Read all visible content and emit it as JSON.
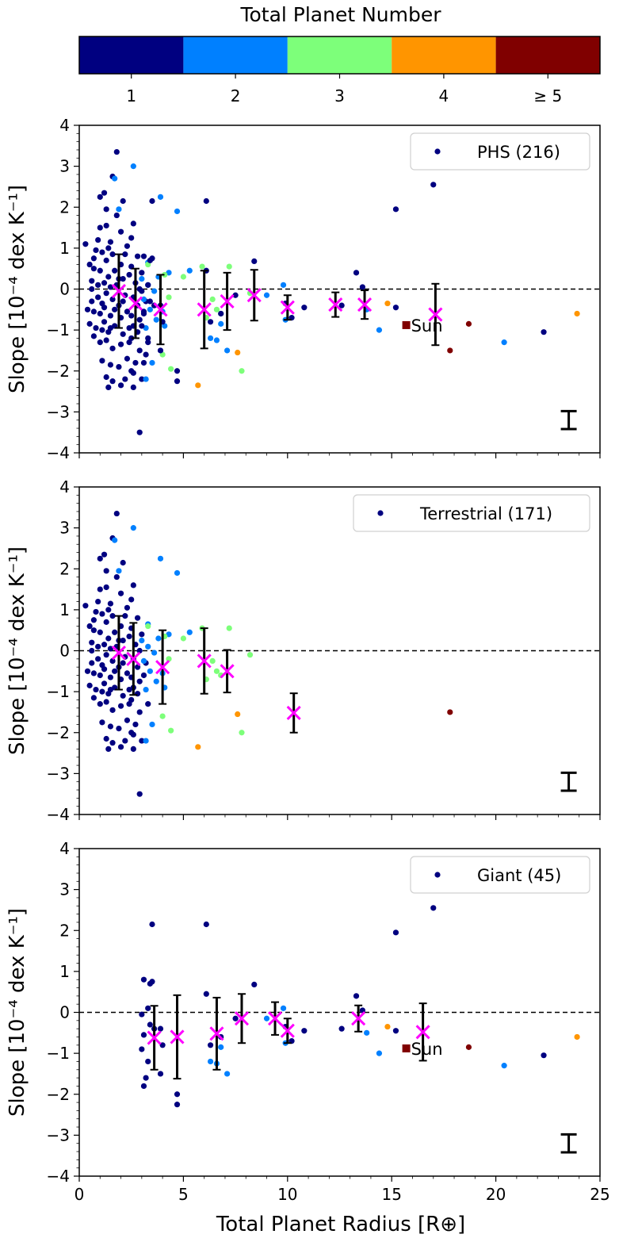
{
  "chart_data": {
    "type": "scatter",
    "colorbar": {
      "title": "Total Planet Number",
      "labels": [
        "1",
        "2",
        "3",
        "4",
        "≥ 5"
      ],
      "colors": [
        "#000080",
        "#0080ff",
        "#7dff7a",
        "#ff9500",
        "#800000"
      ]
    },
    "xlabel": "Total Planet Radius [R⊕]",
    "xlim": [
      0,
      25
    ],
    "xticks": [
      0,
      5,
      10,
      15,
      20,
      25
    ],
    "ylabel": "Slope [10⁻⁴ dex K⁻¹]",
    "ylim": [
      -4,
      4
    ],
    "yticks": [
      -4,
      -3,
      -2,
      -1,
      0,
      1,
      2,
      3,
      4
    ],
    "panels": [
      {
        "legend": "PHS (216)",
        "sun": {
          "x": 15.7,
          "y": -0.88,
          "label": "Sun"
        },
        "typical_error": {
          "x": 23.5,
          "y": -3.2,
          "err": 0.22
        },
        "binned": [
          {
            "x": 1.9,
            "y": -0.05,
            "err": 0.9
          },
          {
            "x": 2.7,
            "y": -0.35,
            "err": 0.85
          },
          {
            "x": 3.9,
            "y": -0.5,
            "err": 0.85
          },
          {
            "x": 6.0,
            "y": -0.5,
            "err": 0.95
          },
          {
            "x": 7.1,
            "y": -0.3,
            "err": 0.7
          },
          {
            "x": 8.4,
            "y": -0.15,
            "err": 0.62
          },
          {
            "x": 10.0,
            "y": -0.45,
            "err": 0.3
          },
          {
            "x": 12.3,
            "y": -0.38,
            "err": 0.3
          },
          {
            "x": 13.7,
            "y": -0.38,
            "err": 0.35
          },
          {
            "x": 17.1,
            "y": -0.62,
            "err": 0.75
          }
        ]
      },
      {
        "legend": "Terrestrial (171)",
        "typical_error": {
          "x": 23.5,
          "y": -3.2,
          "err": 0.22
        },
        "binned": [
          {
            "x": 1.9,
            "y": -0.05,
            "err": 0.9
          },
          {
            "x": 2.6,
            "y": -0.2,
            "err": 0.88
          },
          {
            "x": 4.0,
            "y": -0.4,
            "err": 0.9
          },
          {
            "x": 6.0,
            "y": -0.25,
            "err": 0.8
          },
          {
            "x": 7.1,
            "y": -0.5,
            "err": 0.52
          },
          {
            "x": 10.3,
            "y": -1.52,
            "err": 0.48
          }
        ]
      },
      {
        "legend": "Giant (45)",
        "sun": {
          "x": 15.7,
          "y": -0.88,
          "label": "Sun"
        },
        "typical_error": {
          "x": 23.5,
          "y": -3.2,
          "err": 0.22
        },
        "binned": [
          {
            "x": 3.6,
            "y": -0.62,
            "err": 0.78
          },
          {
            "x": 4.7,
            "y": -0.6,
            "err": 1.02
          },
          {
            "x": 6.6,
            "y": -0.52,
            "err": 0.88
          },
          {
            "x": 7.8,
            "y": -0.15,
            "err": 0.6
          },
          {
            "x": 9.4,
            "y": -0.15,
            "err": 0.4
          },
          {
            "x": 10.0,
            "y": -0.45,
            "err": 0.3
          },
          {
            "x": 13.4,
            "y": -0.15,
            "err": 0.32
          },
          {
            "x": 16.5,
            "y": -0.48,
            "err": 0.7
          }
        ]
      }
    ],
    "points_terrestrial": [
      [
        1.8,
        3.35,
        1
      ],
      [
        1.6,
        2.75,
        1
      ],
      [
        1.0,
        2.25,
        1
      ],
      [
        1.2,
        2.35,
        1
      ],
      [
        1.3,
        1.95,
        1
      ],
      [
        1.0,
        1.5,
        1
      ],
      [
        1.3,
        1.55,
        1
      ],
      [
        0.9,
        1.2,
        1
      ],
      [
        1.5,
        1.15,
        1
      ],
      [
        0.8,
        0.95,
        1
      ],
      [
        1.1,
        0.9,
        1
      ],
      [
        1.3,
        0.7,
        1
      ],
      [
        1.6,
        0.85,
        1
      ],
      [
        0.5,
        0.6,
        1
      ],
      [
        0.7,
        0.5,
        1
      ],
      [
        1.0,
        0.45,
        1
      ],
      [
        1.4,
        0.3,
        1
      ],
      [
        1.7,
        0.45,
        1
      ],
      [
        2.0,
        0.6,
        1
      ],
      [
        0.6,
        0.2,
        1
      ],
      [
        0.9,
        0.1,
        1
      ],
      [
        1.2,
        0.15,
        1
      ],
      [
        1.5,
        0.05,
        1
      ],
      [
        1.8,
        0.1,
        1
      ],
      [
        2.1,
        0.25,
        1
      ],
      [
        0.6,
        -0.3,
        1
      ],
      [
        0.9,
        -0.2,
        1
      ],
      [
        1.1,
        -0.35,
        1
      ],
      [
        1.3,
        -0.1,
        1
      ],
      [
        1.6,
        -0.25,
        1
      ],
      [
        1.9,
        -0.4,
        1
      ],
      [
        2.2,
        -0.15,
        1
      ],
      [
        0.7,
        -0.55,
        1
      ],
      [
        1.0,
        -0.6,
        1
      ],
      [
        1.2,
        -0.8,
        1
      ],
      [
        1.5,
        -0.65,
        1
      ],
      [
        1.7,
        -0.5,
        1
      ],
      [
        2.0,
        -0.7,
        1
      ],
      [
        2.3,
        -0.55,
        1
      ],
      [
        0.8,
        -0.95,
        1
      ],
      [
        1.1,
        -1.0,
        1
      ],
      [
        1.4,
        -1.05,
        1
      ],
      [
        1.7,
        -0.9,
        1
      ],
      [
        2.1,
        -1.1,
        1
      ],
      [
        2.4,
        -0.95,
        1
      ],
      [
        1.0,
        -1.3,
        1
      ],
      [
        1.3,
        -1.25,
        1
      ],
      [
        1.6,
        -1.45,
        1
      ],
      [
        2.0,
        -1.35,
        1
      ],
      [
        2.5,
        -1.2,
        1
      ],
      [
        1.1,
        -1.75,
        1
      ],
      [
        1.5,
        -1.85,
        1
      ],
      [
        1.9,
        -1.9,
        1
      ],
      [
        2.3,
        -1.7,
        1
      ],
      [
        1.3,
        -2.15,
        1
      ],
      [
        1.6,
        -2.25,
        1
      ],
      [
        2.0,
        -2.35,
        1
      ],
      [
        2.6,
        -2.05,
        1
      ],
      [
        1.4,
        -2.4,
        1
      ],
      [
        2.2,
        -2.2,
        1
      ],
      [
        2.3,
        1.05,
        1
      ],
      [
        2.5,
        1.25,
        1
      ],
      [
        2.6,
        1.6,
        1
      ],
      [
        2.8,
        0.8,
        1
      ],
      [
        2.5,
        0.55,
        1
      ],
      [
        2.4,
        0.35,
        1
      ],
      [
        2.7,
        0.15,
        1
      ],
      [
        2.9,
        0.0,
        1
      ],
      [
        2.6,
        -0.2,
        1
      ],
      [
        2.8,
        -0.4,
        1
      ],
      [
        2.5,
        -0.65,
        1
      ],
      [
        2.9,
        -0.75,
        1
      ],
      [
        2.6,
        -0.9,
        1
      ],
      [
        2.8,
        -1.05,
        1
      ],
      [
        2.4,
        -1.3,
        1
      ],
      [
        2.9,
        -1.5,
        1
      ],
      [
        2.7,
        -1.8,
        1
      ],
      [
        2.5,
        -2.0,
        1
      ],
      [
        3.0,
        -2.2,
        1
      ],
      [
        2.6,
        -2.4,
        1
      ],
      [
        2.9,
        -3.5,
        1
      ],
      [
        1.4,
        1.0,
        1
      ],
      [
        2.0,
        1.4,
        1
      ],
      [
        0.7,
        0.75,
        1
      ],
      [
        2.2,
        0.85,
        1
      ],
      [
        1.8,
        1.8,
        1
      ],
      [
        2.1,
        2.15,
        1
      ],
      [
        3.1,
        -0.6,
        1
      ],
      [
        3.2,
        -0.3,
        1
      ],
      [
        3.0,
        0.4,
        1
      ],
      [
        3.3,
        -1.3,
        1
      ],
      [
        0.4,
        -0.5,
        1
      ],
      [
        0.5,
        -0.85,
        1
      ],
      [
        0.6,
        0.0,
        1
      ],
      [
        0.3,
        1.1,
        1
      ],
      [
        0.7,
        -1.15,
        1
      ],
      [
        1.9,
        0.25,
        1
      ],
      [
        1.2,
        -0.45,
        1
      ],
      [
        1.5,
        -0.95,
        1
      ],
      [
        2.1,
        -0.3,
        1
      ],
      [
        2.6,
        3.0,
        2
      ],
      [
        1.7,
        2.7,
        2
      ],
      [
        1.9,
        1.95,
        2
      ],
      [
        3.9,
        2.25,
        2
      ],
      [
        4.7,
        1.9,
        2
      ],
      [
        3.3,
        0.65,
        2
      ],
      [
        3.0,
        0.25,
        2
      ],
      [
        3.3,
        0.1,
        2
      ],
      [
        3.6,
        -0.05,
        2
      ],
      [
        3.1,
        -0.25,
        2
      ],
      [
        3.4,
        -0.5,
        2
      ],
      [
        3.7,
        -0.75,
        2
      ],
      [
        3.2,
        -0.95,
        2
      ],
      [
        4.0,
        -0.55,
        2
      ],
      [
        4.3,
        0.4,
        2
      ],
      [
        3.8,
        0.3,
        2
      ],
      [
        4.1,
        -0.9,
        2
      ],
      [
        3.5,
        -1.8,
        2
      ],
      [
        3.2,
        -2.2,
        2
      ],
      [
        5.3,
        0.45,
        2
      ],
      [
        4.1,
        0.35,
        3
      ],
      [
        5.0,
        0.3,
        3
      ],
      [
        5.9,
        0.55,
        3
      ],
      [
        3.3,
        0.6,
        3
      ],
      [
        4.3,
        -0.2,
        3
      ],
      [
        6.4,
        -0.25,
        3
      ],
      [
        6.6,
        -0.5,
        3
      ],
      [
        4.0,
        -1.6,
        3
      ],
      [
        4.4,
        -1.95,
        3
      ],
      [
        6.1,
        -0.7,
        3
      ],
      [
        7.8,
        -2.0,
        3
      ],
      [
        7.2,
        0.55,
        3
      ],
      [
        8.2,
        -0.1,
        3
      ],
      [
        6.8,
        -0.6,
        3
      ],
      [
        5.7,
        -2.35,
        4
      ],
      [
        7.6,
        -1.55,
        4
      ],
      [
        17.8,
        -1.5,
        5
      ]
    ],
    "points_giant": [
      [
        3.5,
        2.15,
        1
      ],
      [
        3.1,
        0.8,
        1
      ],
      [
        3.4,
        0.7,
        1
      ],
      [
        3.5,
        0.75,
        1
      ],
      [
        3.3,
        0.1,
        1
      ],
      [
        3.0,
        -0.05,
        1
      ],
      [
        3.4,
        -0.3,
        1
      ],
      [
        3.1,
        -0.55,
        1
      ],
      [
        3.6,
        -0.4,
        1
      ],
      [
        3.0,
        -0.9,
        1
      ],
      [
        3.3,
        -1.2,
        1
      ],
      [
        3.2,
        -1.6,
        1
      ],
      [
        3.1,
        -1.8,
        1
      ],
      [
        4.0,
        -0.8,
        1
      ],
      [
        3.9,
        -1.5,
        1
      ],
      [
        3.9,
        -0.4,
        1
      ],
      [
        4.7,
        -2.0,
        1
      ],
      [
        4.7,
        -2.25,
        1
      ],
      [
        6.1,
        2.15,
        1
      ],
      [
        6.1,
        0.45,
        1
      ],
      [
        6.3,
        -0.8,
        1
      ],
      [
        6.8,
        -0.6,
        1
      ],
      [
        7.5,
        -0.15,
        1
      ],
      [
        8.4,
        0.68,
        1
      ],
      [
        9.9,
        -0.35,
        1
      ],
      [
        10.2,
        -0.7,
        1
      ],
      [
        10.8,
        -0.45,
        1
      ],
      [
        12.6,
        -0.4,
        1
      ],
      [
        13.3,
        0.4,
        1
      ],
      [
        13.6,
        0.05,
        1
      ],
      [
        15.2,
        1.95,
        1
      ],
      [
        15.2,
        -0.45,
        1
      ],
      [
        17.0,
        2.55,
        1
      ],
      [
        22.3,
        -1.05,
        1
      ],
      [
        6.3,
        -1.2,
        2
      ],
      [
        6.6,
        -1.25,
        2
      ],
      [
        7.1,
        -1.5,
        2
      ],
      [
        6.8,
        -0.85,
        2
      ],
      [
        9.9,
        -0.75,
        2
      ],
      [
        9.8,
        0.1,
        2
      ],
      [
        9.0,
        -0.15,
        2
      ],
      [
        13.8,
        -0.5,
        2
      ],
      [
        14.4,
        -1.0,
        2
      ],
      [
        20.4,
        -1.3,
        2
      ],
      [
        14.8,
        -0.35,
        4
      ],
      [
        23.9,
        -0.6,
        4
      ],
      [
        18.7,
        -0.85,
        5
      ]
    ]
  }
}
